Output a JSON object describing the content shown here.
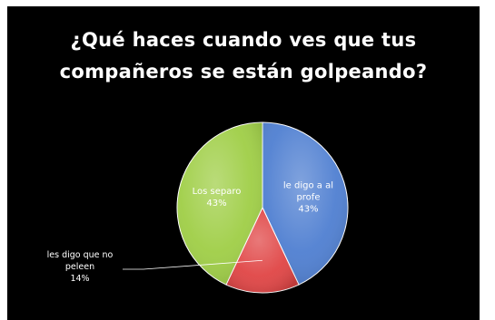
{
  "chart_data": {
    "type": "pie",
    "title": "¿Qué haces cuando ves que tus compañeros se están golpeando?",
    "title_lines": [
      "¿Qué haces cuando ves que tus",
      "compañeros  se  están  golpeando?"
    ],
    "slices": [
      {
        "label_lines": [
          "le digo a al",
          "profe"
        ],
        "value_label": "43%",
        "value": 43,
        "color": "#4f7fd1"
      },
      {
        "label_lines": [
          "les digo que no",
          "peleen"
        ],
        "value_label": "14%",
        "value": 14,
        "color": "#e04545"
      },
      {
        "label_lines": [
          "Los separo"
        ],
        "value_label": "43%",
        "value": 43,
        "color": "#9fce46"
      }
    ],
    "legend": "none",
    "data_labels": "on slices",
    "background": "#000000"
  }
}
